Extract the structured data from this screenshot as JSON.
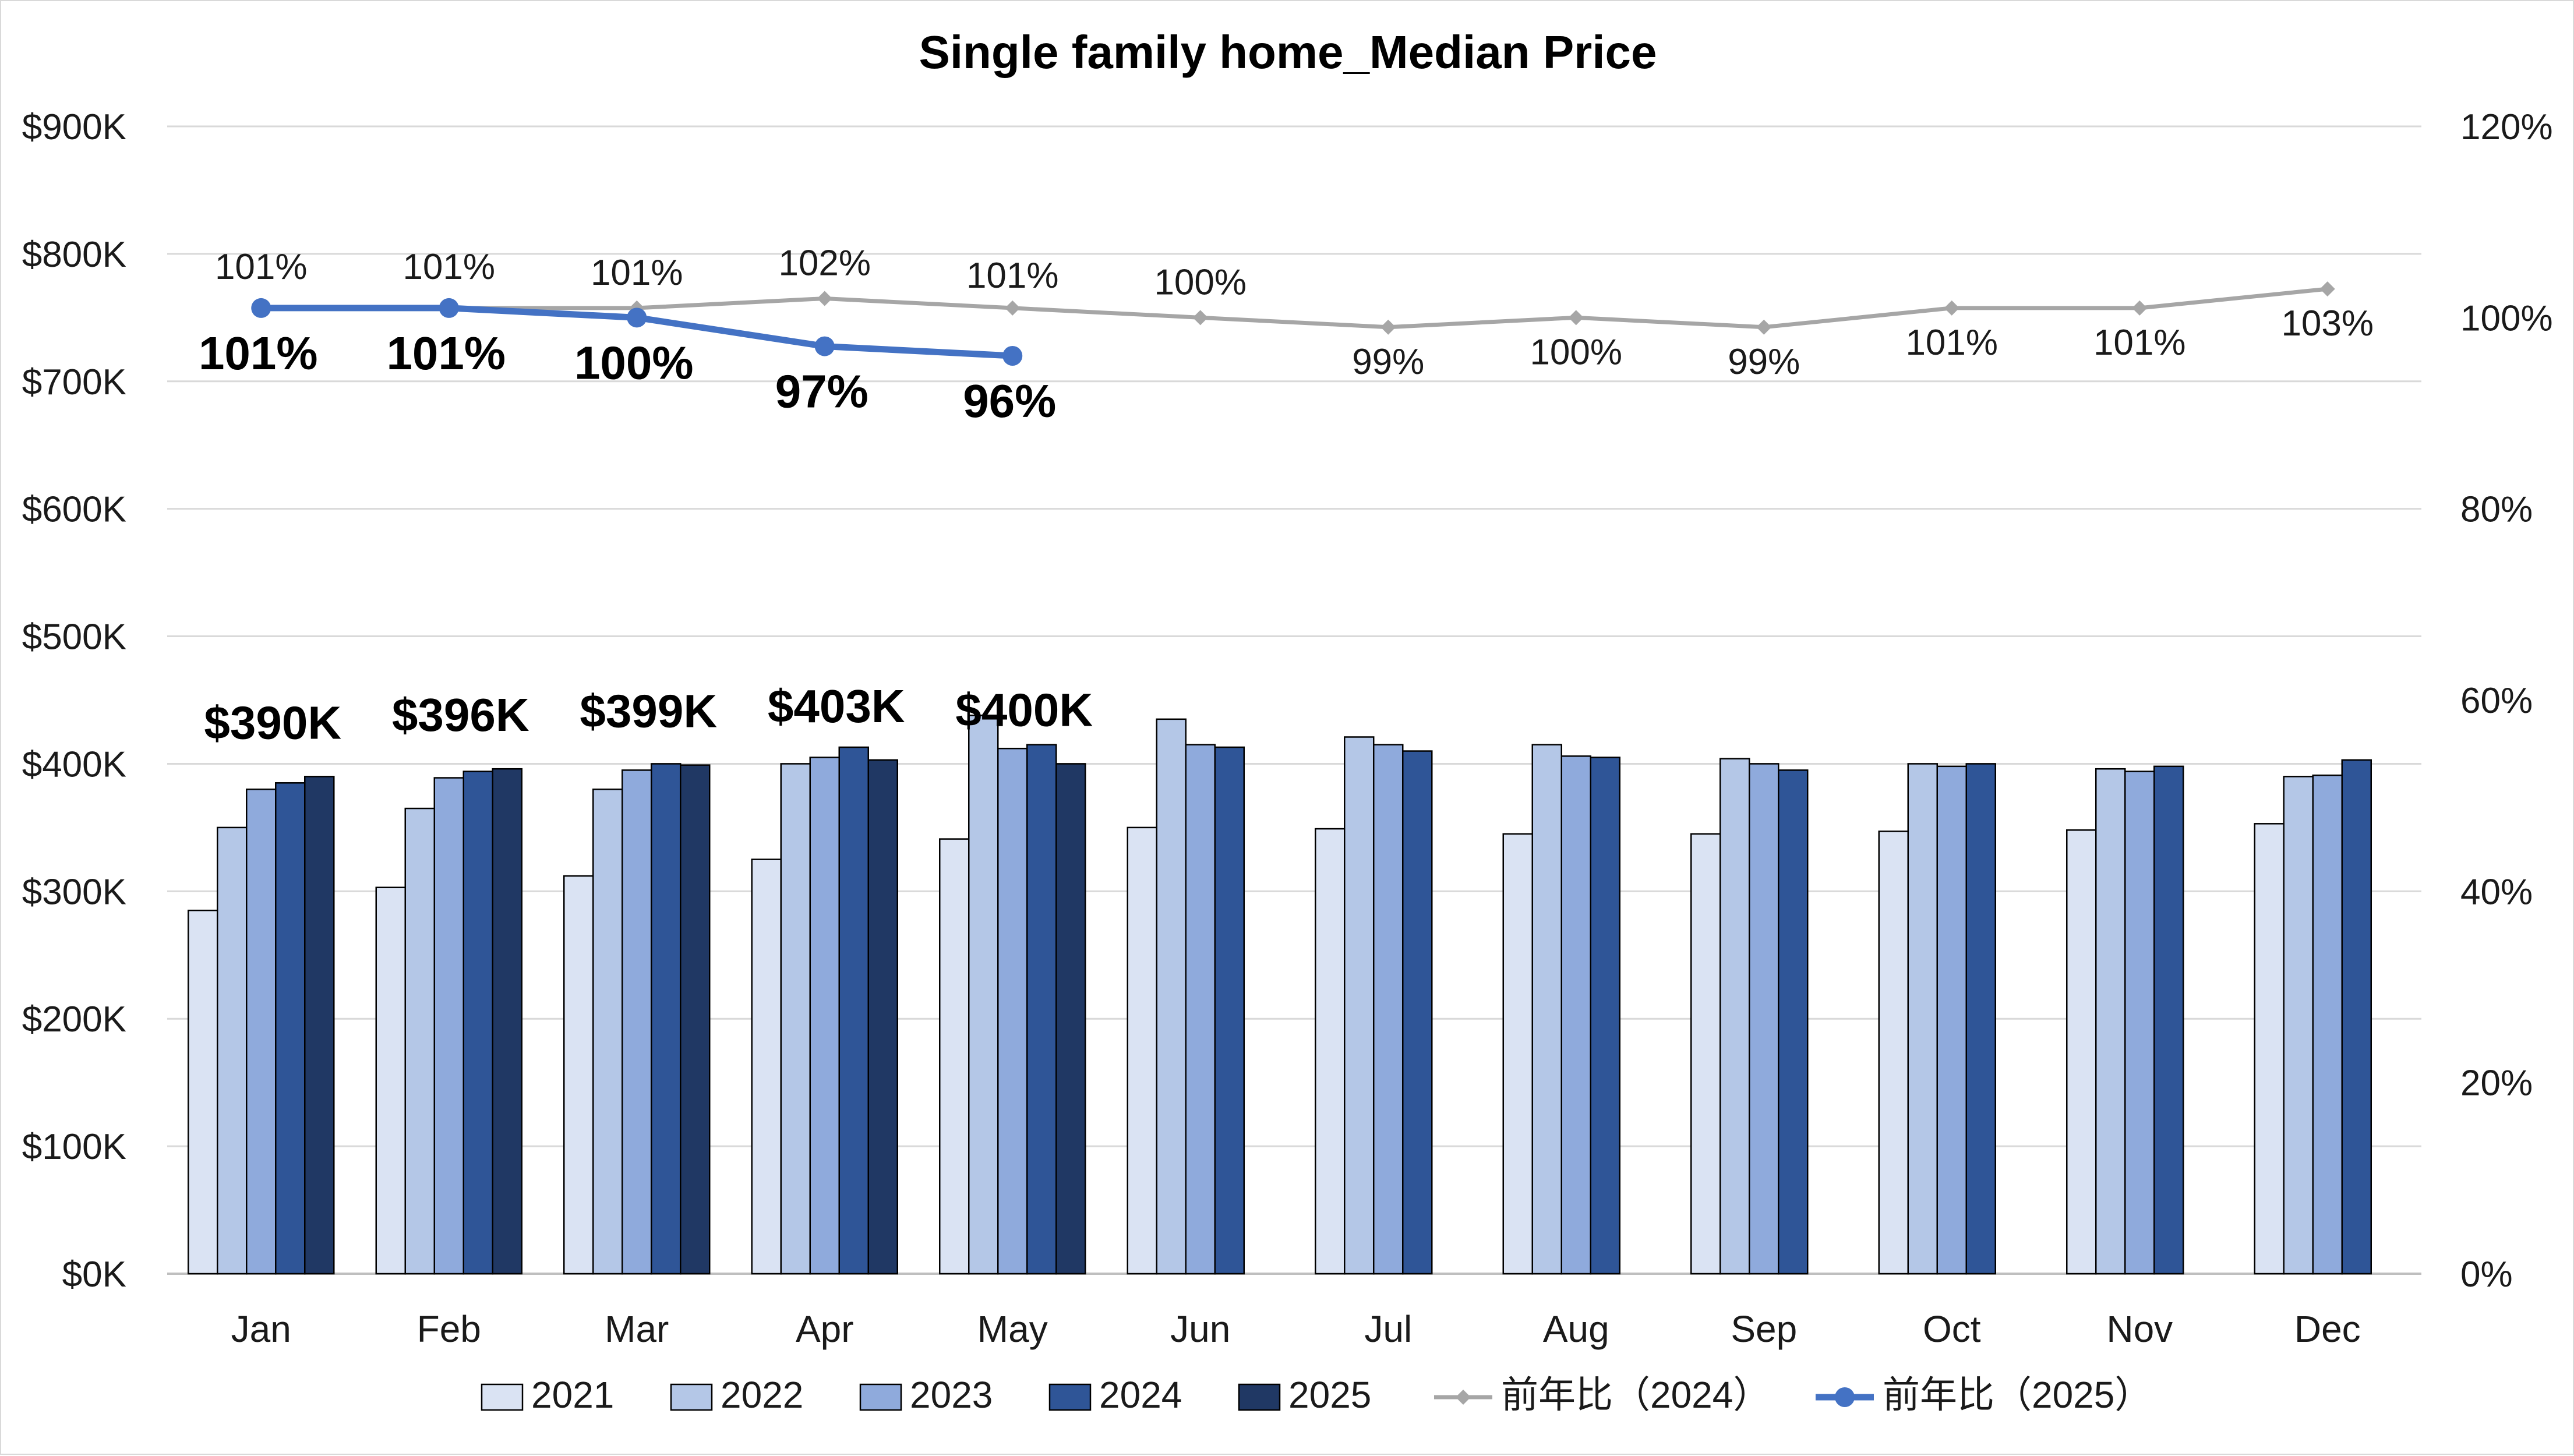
{
  "chart_data": {
    "type": "bar",
    "title": "Single family home_Median Price",
    "categories": [
      "Jan",
      "Feb",
      "Mar",
      "Apr",
      "May",
      "Jun",
      "Jul",
      "Aug",
      "Sep",
      "Oct",
      "Nov",
      "Dec"
    ],
    "y_axis": {
      "range": [
        0,
        900000
      ],
      "ticks": [
        0,
        100000,
        200000,
        300000,
        400000,
        500000,
        600000,
        700000,
        800000,
        900000
      ],
      "tick_labels": [
        "$0K",
        "$100K",
        "$200K",
        "$300K",
        "$400K",
        "$500K",
        "$600K",
        "$700K",
        "$800K",
        "$900K"
      ]
    },
    "y2_axis": {
      "range": [
        0,
        1.2
      ],
      "ticks": [
        0,
        0.2,
        0.4,
        0.6,
        0.8,
        1.0,
        1.2
      ],
      "tick_labels": [
        "0%",
        "20%",
        "40%",
        "60%",
        "80%",
        "100%",
        "120%"
      ]
    },
    "grid": true,
    "legend_position": "bottom",
    "series": [
      {
        "name": "2021",
        "kind": "bar",
        "color": "#dae3f3",
        "values": [
          285000,
          303000,
          312000,
          325000,
          341000,
          350000,
          349000,
          345000,
          345000,
          347000,
          348000,
          353000
        ]
      },
      {
        "name": "2022",
        "kind": "bar",
        "color": "#b4c7e7",
        "values": [
          350000,
          365000,
          380000,
          400000,
          438000,
          435000,
          421000,
          415000,
          404000,
          400000,
          396000,
          390000
        ]
      },
      {
        "name": "2023",
        "kind": "bar",
        "color": "#8faadc",
        "values": [
          380000,
          389000,
          395000,
          405000,
          412000,
          415000,
          415000,
          406000,
          400000,
          398000,
          394000,
          391000
        ]
      },
      {
        "name": "2024",
        "kind": "bar",
        "color": "#2f5597",
        "values": [
          385000,
          394000,
          400000,
          413000,
          415000,
          413000,
          410000,
          405000,
          395000,
          400000,
          398000,
          403000
        ]
      },
      {
        "name": "2025",
        "kind": "bar",
        "color": "#203864",
        "values": [
          390000,
          396000,
          399000,
          403000,
          400000,
          null,
          null,
          null,
          null,
          null,
          null,
          null
        ]
      },
      {
        "name": "前年比（2024）",
        "kind": "line",
        "axis": "y2",
        "color": "#a6a6a6",
        "marker": "diamond",
        "values": [
          1.01,
          1.01,
          1.01,
          1.02,
          1.01,
          1.0,
          0.99,
          1.0,
          0.99,
          1.01,
          1.01,
          1.03
        ],
        "labels": [
          "101%",
          "101%",
          "101%",
          "102%",
          "101%",
          "100%",
          "99%",
          "100%",
          "99%",
          "101%",
          "101%",
          "103%"
        ]
      },
      {
        "name": "前年比（2025）",
        "kind": "line",
        "axis": "y2",
        "color": "#4472c4",
        "marker": "circle",
        "values": [
          1.01,
          1.01,
          1.0,
          0.97,
          0.96,
          null,
          null,
          null,
          null,
          null,
          null,
          null
        ],
        "labels": [
          "101%",
          "101%",
          "100%",
          "97%",
          "96%"
        ]
      }
    ],
    "price_labels_2025": [
      "$390K",
      "$396K",
      "$399K",
      "$403K",
      "$400K"
    ]
  }
}
